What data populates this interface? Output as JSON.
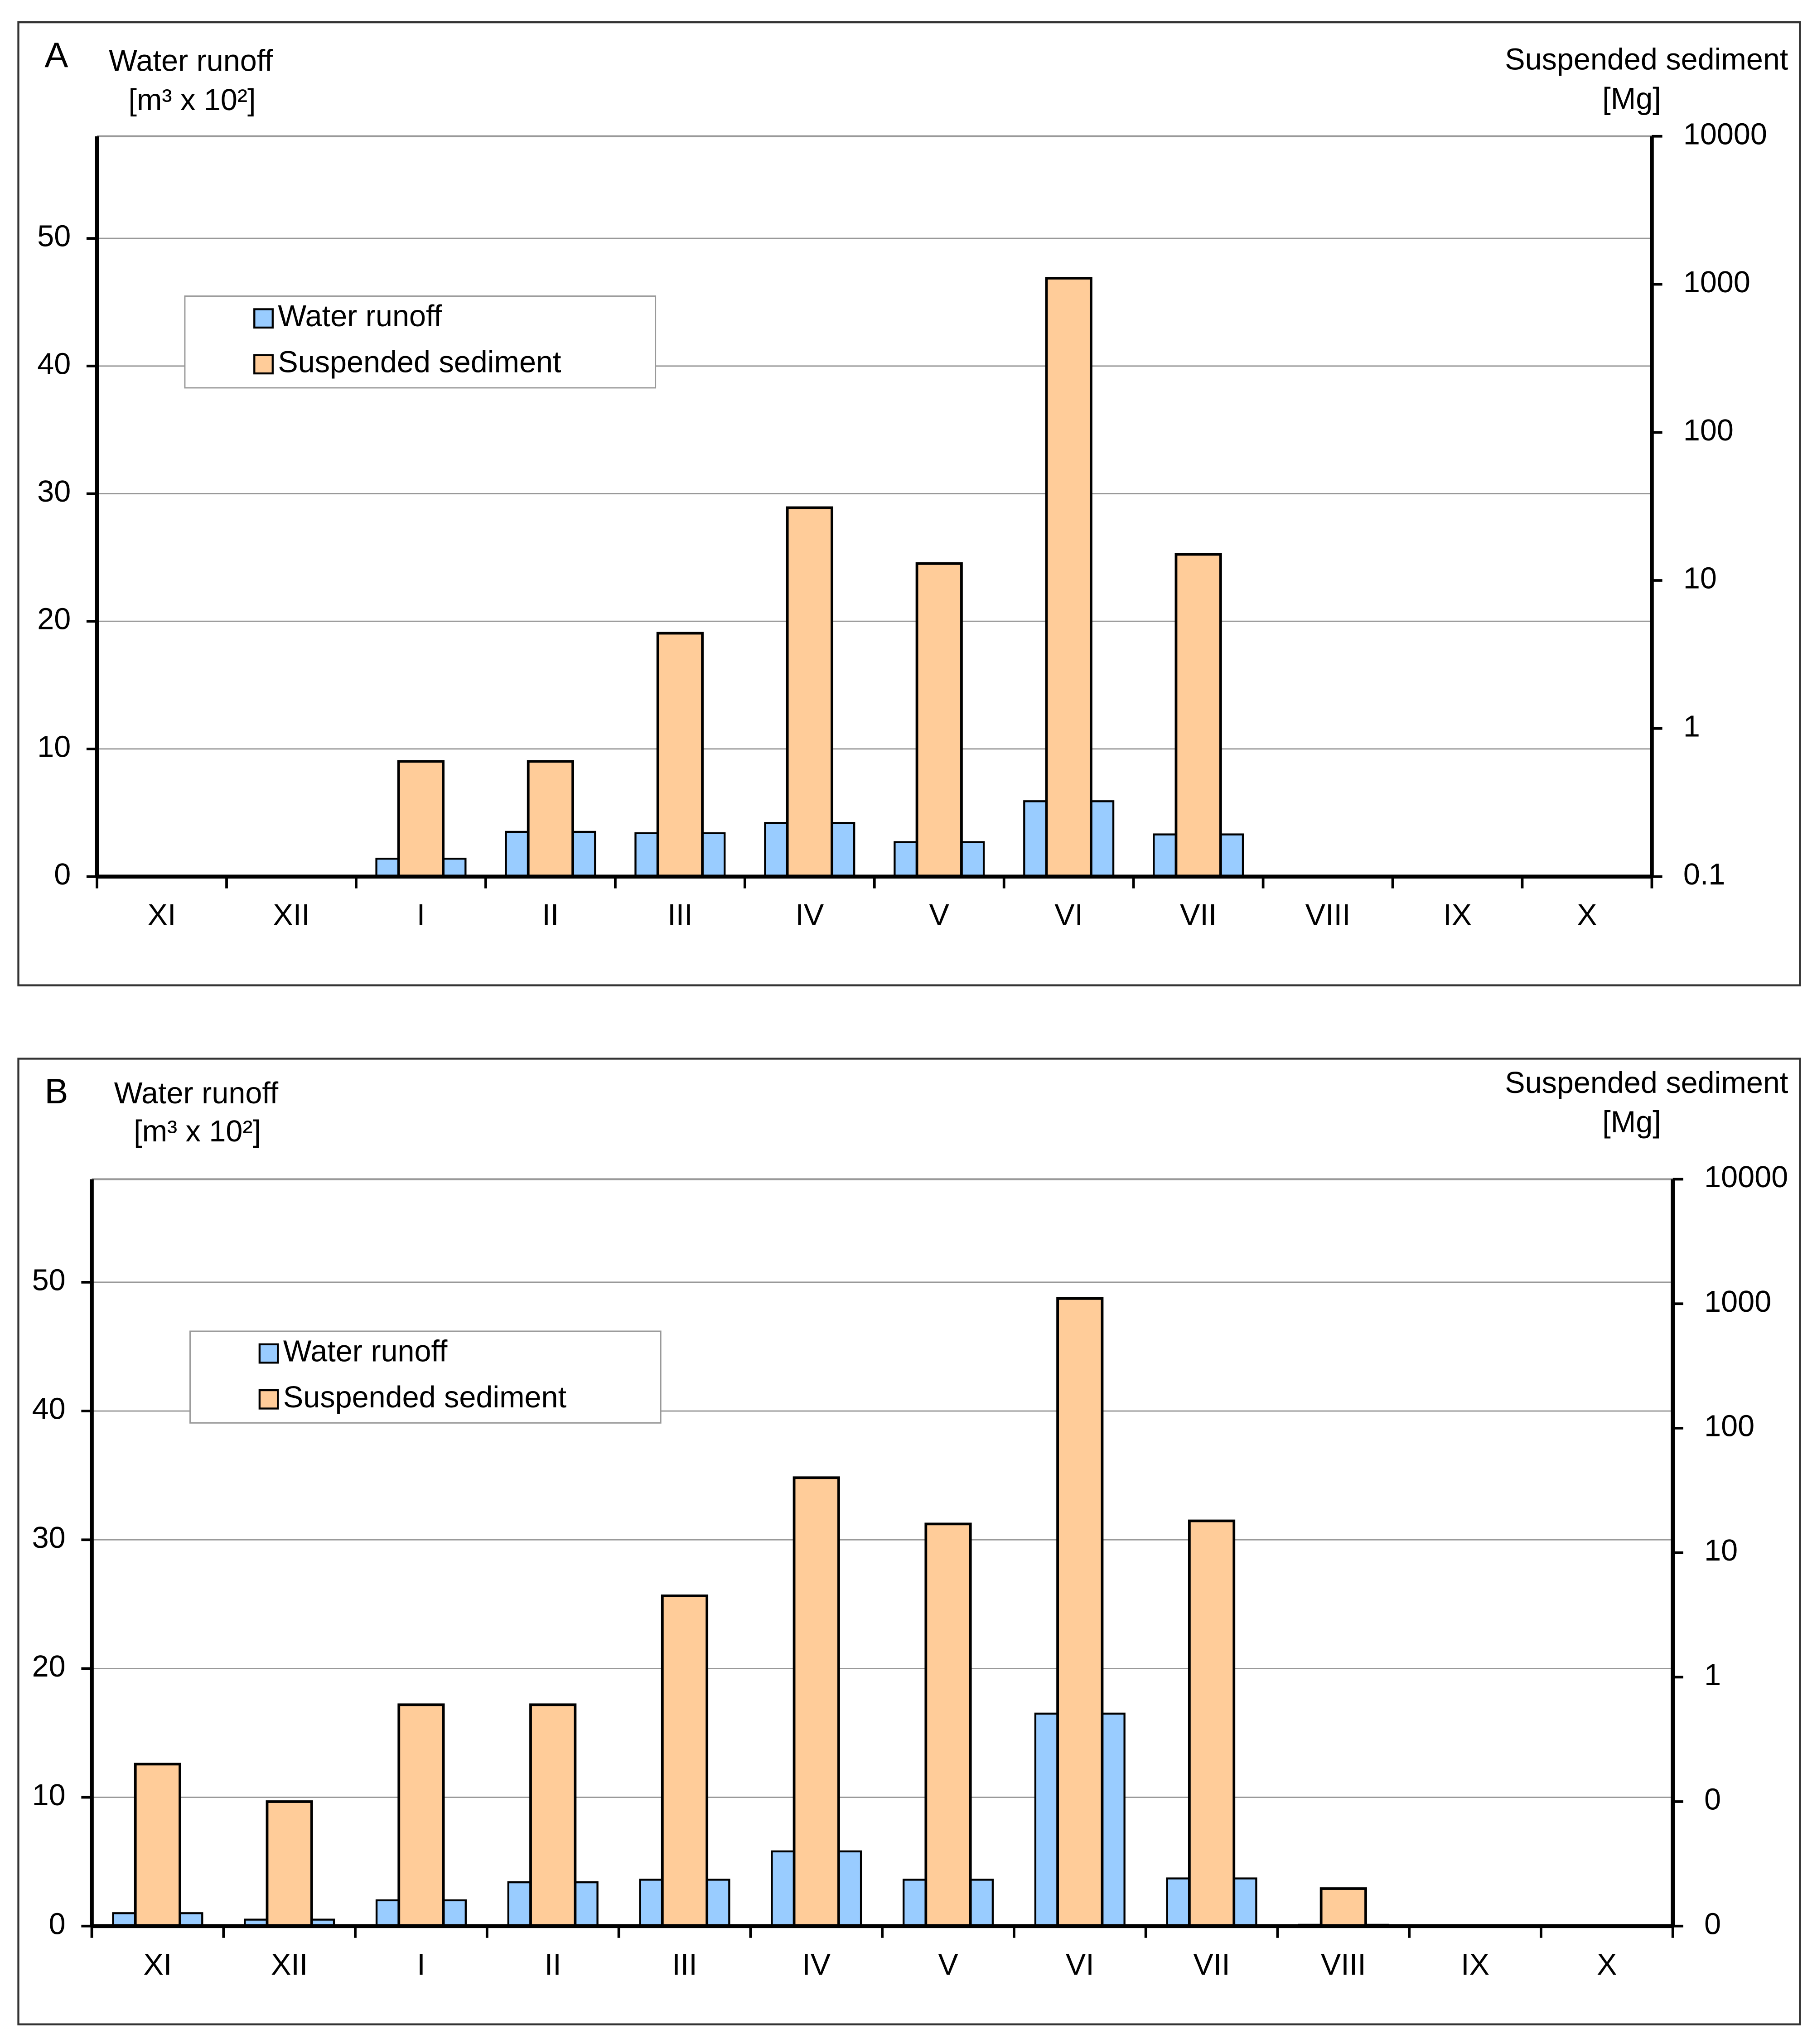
{
  "chart_data": [
    {
      "type": "bar",
      "panel": "A",
      "y_label": "Water runoff",
      "y_unit": "[m³ x 10²]",
      "y2_label": "Suspended sediment",
      "y2_unit": "[Mg]",
      "categories": [
        "XI",
        "XII",
        "I",
        "II",
        "III",
        "IV",
        "V",
        "VI",
        "VII",
        "VIII",
        "IX",
        "X"
      ],
      "series": [
        {
          "name": "Water runoff",
          "color": "#99ccff",
          "values": [
            0,
            0,
            1.4,
            3.5,
            3.4,
            4.2,
            2.7,
            5.9,
            3.3,
            0,
            0,
            0
          ]
        },
        {
          "name": "Suspended sediment",
          "color": "#ffcc99",
          "axis": "y2",
          "values": [
            null,
            null,
            0.6,
            0.6,
            4.4,
            31,
            13,
            1100,
            15,
            null,
            null,
            null
          ]
        }
      ],
      "ylim": [
        0,
        58
      ],
      "yticks": [
        0,
        10,
        20,
        30,
        40,
        50
      ],
      "y2lim": [
        0.1,
        10000
      ],
      "y2ticks": [
        0.1,
        1,
        10,
        100,
        1000,
        10000
      ],
      "y2log": true,
      "grid": true,
      "legend": "upper left"
    },
    {
      "type": "bar",
      "panel": "B",
      "y_label": "Water runoff",
      "y_unit": "[m³ x 10²]",
      "y2_label": "Suspended sediment",
      "y2_unit": "[Mg]",
      "categories": [
        "XI",
        "XII",
        "I",
        "II",
        "III",
        "IV",
        "V",
        "VI",
        "VII",
        "VIII",
        "IX",
        "X"
      ],
      "series": [
        {
          "name": "Water runoff",
          "color": "#99ccff",
          "values": [
            1.0,
            0.5,
            2.0,
            3.4,
            3.6,
            5.8,
            3.6,
            16.5,
            3.7,
            0.1,
            0,
            0
          ]
        },
        {
          "name": "Suspended sediment",
          "color": "#ffcc99",
          "axis": "y2",
          "values": [
            0.2,
            0.1,
            0.6,
            0.6,
            4.5,
            40,
            17,
            1100,
            18,
            0.02,
            null,
            null
          ]
        }
      ],
      "ylim": [
        0,
        58
      ],
      "yticks": [
        0,
        10,
        20,
        30,
        40,
        50
      ],
      "y2lim": [
        0.01,
        10000
      ],
      "y2ticks": [
        {
          "value": 0.01,
          "label": "0"
        },
        {
          "value": 0.1,
          "label": "0"
        },
        1,
        10,
        100,
        1000,
        10000
      ],
      "y2log": true,
      "grid": true,
      "legend": "upper left"
    }
  ]
}
